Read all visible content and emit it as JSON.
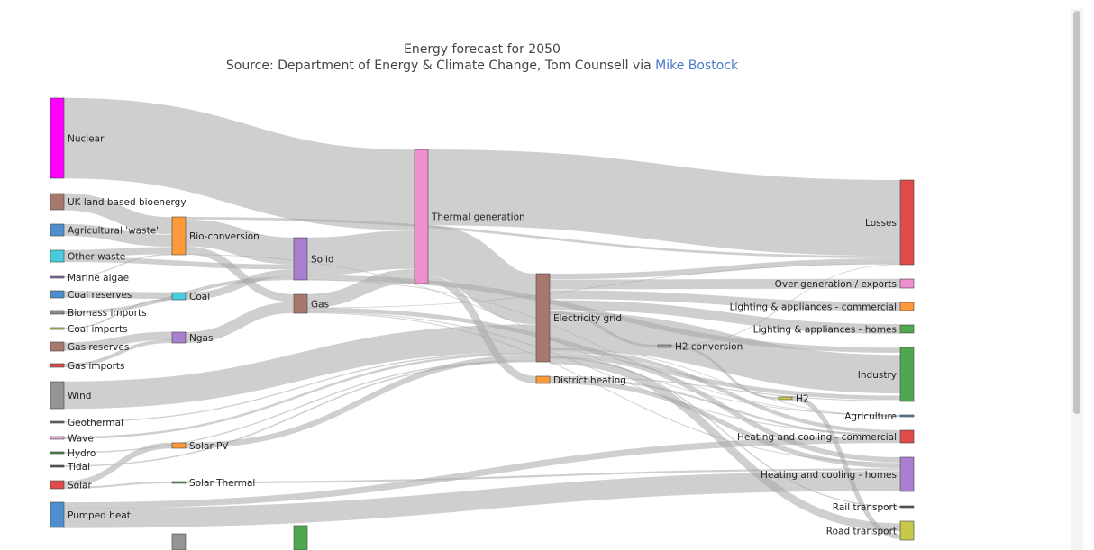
{
  "chart_data": {
    "type": "sankey",
    "title": "Energy forecast for 2050",
    "subtitle_text": "Source: Department of Energy & Climate Change, Tom Counsell via ",
    "subtitle_link": "Mike Bostock",
    "link_color": "#4a79c9",
    "nodes": [
      {
        "name": "Nuclear",
        "color": "#ff00ff"
      },
      {
        "name": "UK land based bioenergy",
        "color": "#a6786e"
      },
      {
        "name": "Agricultural 'waste'",
        "color": "#4f8fcf"
      },
      {
        "name": "Other waste",
        "color": "#48cde0"
      },
      {
        "name": "Marine algae",
        "color": "#8c6bb1"
      },
      {
        "name": "Coal reserves",
        "color": "#4f8fcf"
      },
      {
        "name": "Biomass imports",
        "color": "#8a8a8a"
      },
      {
        "name": "Coal imports",
        "color": "#c8c84a"
      },
      {
        "name": "Gas reserves",
        "color": "#a6786e"
      },
      {
        "name": "Gas imports",
        "color": "#e04a4a"
      },
      {
        "name": "Wind",
        "color": "#959595"
      },
      {
        "name": "Geothermal",
        "color": "#666666"
      },
      {
        "name": "Wave",
        "color": "#e8a0d8"
      },
      {
        "name": "Hydro",
        "color": "#4a8a4a"
      },
      {
        "name": "Tidal",
        "color": "#555555"
      },
      {
        "name": "Solar",
        "color": "#e04a4a"
      },
      {
        "name": "Pumped heat",
        "color": "#4f8fcf"
      },
      {
        "name": "Bio-conversion",
        "color": "#ff9a3c"
      },
      {
        "name": "Coal",
        "color": "#48cde0"
      },
      {
        "name": "Ngas",
        "color": "#a97fcf"
      },
      {
        "name": "Solar PV",
        "color": "#ff9a3c"
      },
      {
        "name": "Solar Thermal",
        "color": "#4fa84f"
      },
      {
        "name": "Solid",
        "color": "#a97fcf"
      },
      {
        "name": "Gas",
        "color": "#a6786e"
      },
      {
        "name": "Thermal generation",
        "color": "#ee8fcf"
      },
      {
        "name": "Electricity grid",
        "color": "#a6786e"
      },
      {
        "name": "District heating",
        "color": "#ff9a3c"
      },
      {
        "name": "H2 conversion",
        "color": "#9a9a9a"
      },
      {
        "name": "H2",
        "color": "#c8c84a"
      },
      {
        "name": "Losses",
        "color": "#e04a4a"
      },
      {
        "name": "Over generation / exports",
        "color": "#ee8fcf"
      },
      {
        "name": "Lighting & appliances - commercial",
        "color": "#ff9a3c"
      },
      {
        "name": "Lighting & appliances - homes",
        "color": "#4fa84f"
      },
      {
        "name": "Industry",
        "color": "#4fa84f"
      },
      {
        "name": "Agriculture",
        "color": "#4a8aa8"
      },
      {
        "name": "Heating and cooling - commercial",
        "color": "#e04a4a"
      },
      {
        "name": "Heating and cooling - homes",
        "color": "#a97fcf"
      },
      {
        "name": "Rail transport",
        "color": "#555555"
      },
      {
        "name": "Road transport",
        "color": "#c8c84a"
      },
      {
        "name": "",
        "color": "#4fa84f"
      },
      {
        "name": "",
        "color": "#959595"
      }
    ],
    "links": [
      {
        "source": "Nuclear",
        "target": "Thermal generation",
        "value": 839
      },
      {
        "source": "UK land based bioenergy",
        "target": "Bio-conversion",
        "value": 182
      },
      {
        "source": "Agricultural 'waste'",
        "target": "Bio-conversion",
        "value": 124
      },
      {
        "source": "Other waste",
        "target": "Bio-conversion",
        "value": 77
      },
      {
        "source": "Other waste",
        "target": "Solid",
        "value": 56
      },
      {
        "source": "Marine algae",
        "target": "Bio-conversion",
        "value": 4
      },
      {
        "source": "Coal reserves",
        "target": "Coal",
        "value": 63
      },
      {
        "source": "Biomass imports",
        "target": "Solid",
        "value": 35
      },
      {
        "source": "Coal imports",
        "target": "Coal",
        "value": 11
      },
      {
        "source": "Gas reserves",
        "target": "Ngas",
        "value": 82
      },
      {
        "source": "Gas imports",
        "target": "Ngas",
        "value": 40
      },
      {
        "source": "Wind",
        "target": "Electricity grid",
        "value": 289
      },
      {
        "source": "Geothermal",
        "target": "Electricity grid",
        "value": 7
      },
      {
        "source": "Wave",
        "target": "Electricity grid",
        "value": 19
      },
      {
        "source": "Hydro",
        "target": "Electricity grid",
        "value": 7
      },
      {
        "source": "Tidal",
        "target": "Electricity grid",
        "value": 10
      },
      {
        "source": "Solar",
        "target": "Solar PV",
        "value": 60
      },
      {
        "source": "Solar",
        "target": "Solar Thermal",
        "value": 19
      },
      {
        "source": "Pumped heat",
        "target": "Heating and cooling - homes",
        "value": 193
      },
      {
        "source": "Pumped heat",
        "target": "Heating and cooling - commercial",
        "value": 70
      },
      {
        "source": "Bio-conversion",
        "target": "Solid",
        "value": 280
      },
      {
        "source": "Bio-conversion",
        "target": "Gas",
        "value": 82
      },
      {
        "source": "Bio-conversion",
        "target": "Losses",
        "value": 26
      },
      {
        "source": "Bio-conversion",
        "target": "Agriculture",
        "value": 4
      },
      {
        "source": "Coal",
        "target": "Solid",
        "value": 75
      },
      {
        "source": "Ngas",
        "target": "Gas",
        "value": 122
      },
      {
        "source": "Solar PV",
        "target": "Electricity grid",
        "value": 59
      },
      {
        "source": "Solar Thermal",
        "target": "Heating and cooling - homes",
        "value": 19
      },
      {
        "source": "Solid",
        "target": "Thermal generation",
        "value": 400
      },
      {
        "source": "Solid",
        "target": "Industry",
        "value": 46
      },
      {
        "source": "Solid",
        "target": "Agriculture",
        "value": 1
      },
      {
        "source": "Gas",
        "target": "Thermal generation",
        "value": 151
      },
      {
        "source": "Gas",
        "target": "Losses",
        "value": 2
      },
      {
        "source": "Gas",
        "target": "Heating and cooling - commercial",
        "value": 10
      },
      {
        "source": "Gas",
        "target": "Heating and cooling - homes",
        "value": 9
      },
      {
        "source": "Gas",
        "target": "Industry",
        "value": 40
      },
      {
        "source": "Thermal generation",
        "target": "Losses",
        "value": 787
      },
      {
        "source": "Thermal generation",
        "target": "Electricity grid",
        "value": 525
      },
      {
        "source": "Thermal generation",
        "target": "District heating",
        "value": 79
      },
      {
        "source": "Electricity grid",
        "target": "Over generation / exports",
        "value": 104
      },
      {
        "source": "Electricity grid",
        "target": "Lighting & appliances - commercial",
        "value": 93
      },
      {
        "source": "Electricity grid",
        "target": "Lighting & appliances - homes",
        "value": 113
      },
      {
        "source": "Electricity grid",
        "target": "Industry",
        "value": 342
      },
      {
        "source": "Electricity grid",
        "target": "Heating and cooling - commercial",
        "value": 40
      },
      {
        "source": "Electricity grid",
        "target": "Heating and cooling - homes",
        "value": 47
      },
      {
        "source": "Electricity grid",
        "target": "Losses",
        "value": 56
      },
      {
        "source": "Electricity grid",
        "target": "H2 conversion",
        "value": 27
      },
      {
        "source": "Electricity grid",
        "target": "Rail transport",
        "value": 7
      },
      {
        "source": "Electricity grid",
        "target": "Road transport",
        "value": 37
      },
      {
        "source": "Electricity grid",
        "target": "Agriculture",
        "value": 4
      },
      {
        "source": "District heating",
        "target": "Industry",
        "value": 10
      },
      {
        "source": "District heating",
        "target": "Heating and cooling - commercial",
        "value": 22
      },
      {
        "source": "District heating",
        "target": "Heating and cooling - homes",
        "value": 46
      },
      {
        "source": "H2 conversion",
        "target": "H2",
        "value": 20
      },
      {
        "source": "H2 conversion",
        "target": "Losses",
        "value": 7
      },
      {
        "source": "H2",
        "target": "Road transport",
        "value": 20
      }
    ]
  }
}
